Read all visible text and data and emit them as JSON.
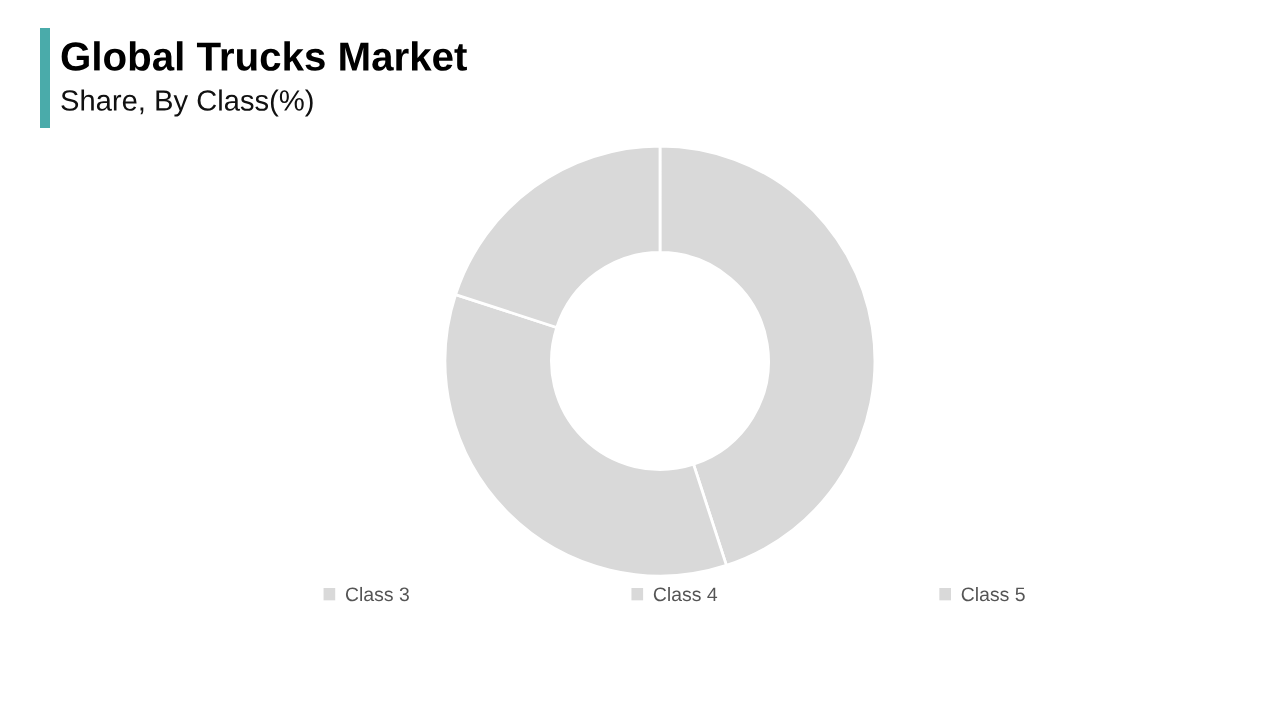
{
  "chart_data": {
    "type": "donut",
    "title": "Global Trucks Market",
    "subtitle": "Share, By Class(%)",
    "categories": [
      "Class 3",
      "Class 4",
      "Class 5"
    ],
    "values": [
      45,
      35,
      20
    ],
    "colors": [
      "#d9d9d9",
      "#d9d9d9",
      "#d9d9d9"
    ],
    "legend": "bottom"
  }
}
